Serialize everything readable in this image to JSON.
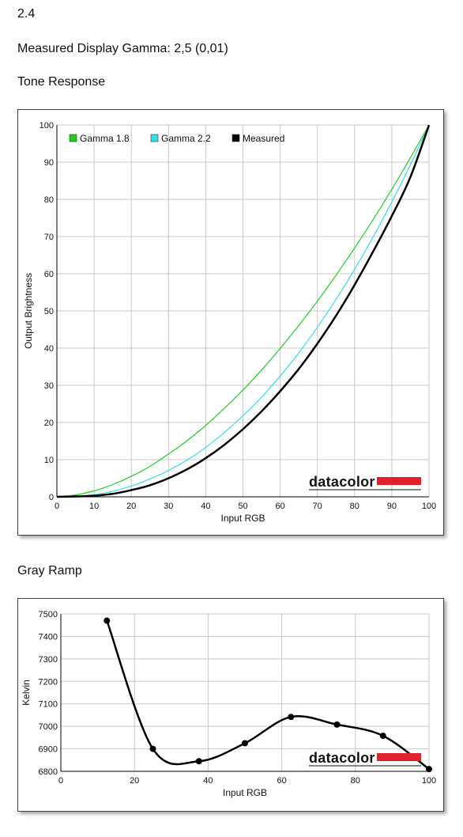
{
  "header": {
    "value": "2.4",
    "measured_gamma": "Measured Display Gamma: 2,5 (0,01)"
  },
  "tone_section": {
    "title": "Tone Response"
  },
  "gray_section": {
    "title": "Gray Ramp"
  },
  "brand": {
    "name": "datacolor",
    "color": "#e0202a"
  },
  "chart_data": [
    {
      "type": "line",
      "xlabel": "Input RGB",
      "ylabel": "Output Brightness",
      "xlim": [
        0,
        100
      ],
      "ylim": [
        0,
        100
      ],
      "xticks": [
        0,
        10,
        20,
        30,
        40,
        50,
        60,
        70,
        80,
        90,
        100
      ],
      "yticks": [
        0,
        10,
        20,
        30,
        40,
        50,
        60,
        70,
        80,
        90,
        100
      ],
      "grid": true,
      "legend_position": "top-left",
      "series": [
        {
          "name": "Gamma 1.8",
          "color": "#22cc22",
          "x": [
            0,
            5,
            10,
            15,
            20,
            25,
            30,
            35,
            40,
            45,
            50,
            55,
            60,
            65,
            70,
            75,
            80,
            85,
            90,
            95,
            100
          ],
          "y": [
            0,
            0.5,
            1.6,
            3.3,
            5.5,
            8.2,
            11.5,
            15.1,
            19.2,
            23.8,
            28.7,
            34.1,
            39.9,
            46.1,
            52.6,
            59.6,
            66.9,
            74.6,
            82.7,
            91.2,
            100
          ]
        },
        {
          "name": "Gamma 2.2",
          "color": "#33dde8",
          "x": [
            0,
            5,
            10,
            15,
            20,
            25,
            30,
            35,
            40,
            45,
            50,
            55,
            60,
            65,
            70,
            75,
            80,
            85,
            90,
            95,
            100
          ],
          "y": [
            0,
            0.1,
            0.6,
            1.5,
            2.9,
            4.8,
            7.1,
            9.9,
            13.3,
            17.3,
            21.8,
            26.8,
            32.5,
            38.7,
            45.6,
            53.1,
            61.2,
            69.9,
            79.3,
            89.3,
            100
          ]
        },
        {
          "name": "Measured",
          "color": "#000000",
          "x": [
            0,
            5,
            10,
            15,
            20,
            25,
            30,
            35,
            40,
            45,
            50,
            55,
            60,
            65,
            70,
            75,
            80,
            85,
            90,
            95,
            100
          ],
          "y": [
            0,
            0.1,
            0.3,
            0.8,
            1.8,
            3.1,
            5.0,
            7.4,
            10.4,
            14.0,
            18.2,
            23.0,
            28.4,
            34.4,
            41.2,
            48.7,
            57.0,
            66.0,
            75.5,
            86.0,
            100
          ]
        }
      ]
    },
    {
      "type": "line",
      "xlabel": "Input RGB",
      "ylabel": "Kelvin",
      "xlim": [
        0,
        100
      ],
      "ylim": [
        6800,
        7500
      ],
      "xticks": [
        0,
        20,
        40,
        60,
        80,
        100
      ],
      "yticks": [
        6800,
        6900,
        7000,
        7100,
        7200,
        7300,
        7400,
        7500
      ],
      "grid": true,
      "series": [
        {
          "color": "#000000",
          "x": [
            12.5,
            25,
            37.5,
            50,
            62.5,
            75,
            87.5,
            100
          ],
          "y": [
            7470,
            6900,
            6845,
            6925,
            7042,
            7008,
            6958,
            6810
          ]
        }
      ]
    }
  ]
}
